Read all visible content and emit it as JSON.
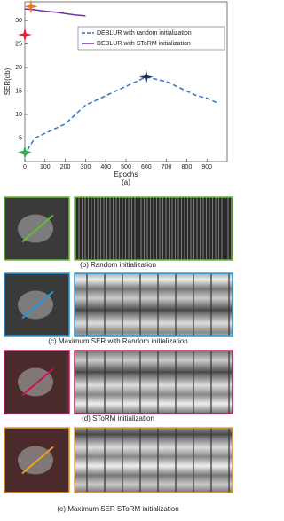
{
  "chart_data": {
    "type": "line",
    "panel_label": "(a)",
    "x_label": "Epochs",
    "y_label": "SER(db)",
    "xlim": [
      0,
      1000
    ],
    "xticks": [
      0,
      100,
      200,
      300,
      400,
      500,
      600,
      700,
      800,
      900
    ],
    "ylim": [
      0,
      34
    ],
    "yticks": [
      5,
      10,
      15,
      20,
      25,
      30
    ],
    "legend": "upper right",
    "series": [
      {
        "name": "DEBLUR with random initialization",
        "color": "#2e75c6",
        "dashed": true,
        "x": [
          0,
          20,
          50,
          100,
          150,
          200,
          250,
          300,
          350,
          400,
          450,
          500,
          550,
          600,
          650,
          700,
          750,
          800,
          850,
          900,
          950
        ],
        "values": [
          1,
          3,
          5,
          6,
          7,
          8,
          10,
          12,
          13,
          14,
          15,
          16,
          17,
          18,
          17.5,
          17,
          16,
          15,
          14,
          13.5,
          12.5
        ]
      },
      {
        "name": "DEBLUR with SToRM initialization",
        "color": "#7b2fa0",
        "dashed": false,
        "x": [
          0,
          50,
          100,
          150,
          200,
          250,
          300
        ],
        "values": [
          32.5,
          32.3,
          32,
          31.8,
          31.5,
          31.2,
          31
        ]
      }
    ],
    "markers": [
      {
        "x": 30,
        "y": 33,
        "color": "#e07b2a"
      },
      {
        "x": 0,
        "y": 27,
        "color": "#e8202a"
      },
      {
        "x": 600,
        "y": 18,
        "color": "#1f2f5a"
      },
      {
        "x": 0,
        "y": 2,
        "color": "#2cb44a"
      }
    ]
  },
  "panels": [
    {
      "caption": "(b) Random initialization",
      "color": "#66bb33"
    },
    {
      "caption": "(c) Maximum SER with Random initialization",
      "color": "#2299dd"
    },
    {
      "caption": "(d) SToRM initialization",
      "color": "#cc1155"
    },
    {
      "caption": "(e) Maximum SER SToRM initialization",
      "color": "#e8a020"
    }
  ]
}
